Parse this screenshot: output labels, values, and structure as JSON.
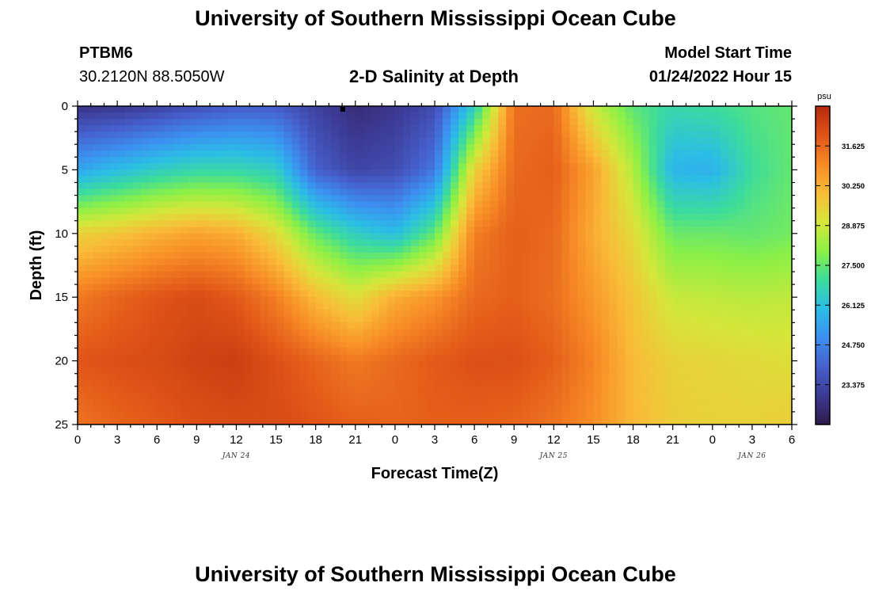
{
  "header": {
    "title": "University of Southern Mississippi Ocean Cube",
    "station_id": "PTBM6",
    "coordinates": "30.2120N  88.5050W",
    "plot_title": "2-D Salinity at Depth",
    "model_start_label": "Model Start Time",
    "model_start_value": "01/24/2022 Hour 15"
  },
  "footer": {
    "title": "University of Southern Mississippi Ocean Cube"
  },
  "chart_data": {
    "type": "heatmap",
    "title": "2-D Salinity at Depth",
    "xlabel": "Forecast Time(Z)",
    "ylabel": "Depth (ft)",
    "x_tick_labels": [
      "0",
      "3",
      "6",
      "9",
      "12",
      "15",
      "18",
      "21",
      "0",
      "3",
      "6",
      "9",
      "12",
      "15",
      "18",
      "21",
      "0",
      "3",
      "6"
    ],
    "date_labels": [
      {
        "text": "JAN 24",
        "tick_index": 4
      },
      {
        "text": "JAN 25",
        "tick_index": 12
      },
      {
        "text": "JAN 26",
        "tick_index": 17
      }
    ],
    "y_ticks": [
      0,
      5,
      10,
      15,
      20,
      25
    ],
    "ylim": [
      0,
      25
    ],
    "x_hours_range": [
      0,
      54
    ],
    "colorbar": {
      "unit": "psu",
      "range": [
        22.0,
        33.0
      ],
      "tick_labels": [
        "31.625",
        "30.250",
        "28.875",
        "27.500",
        "26.125",
        "24.750",
        "23.375"
      ],
      "colors": [
        "#2e1a4a",
        "#3c3a94",
        "#4660cc",
        "#3c8ff0",
        "#2bbde6",
        "#3cdc9c",
        "#8cf046",
        "#d6e63a",
        "#f9bc38",
        "#f78a25",
        "#e05418",
        "#b52a0c"
      ]
    },
    "grid": {
      "depths_ft": [
        0,
        5,
        10,
        15,
        20,
        25
      ],
      "hours": [
        0,
        3,
        6,
        9,
        12,
        15,
        18,
        21,
        24,
        27,
        30,
        33,
        36,
        39,
        42,
        45,
        48,
        51,
        54
      ],
      "salinity_psu": [
        [
          22.8,
          22.9,
          23.2,
          23.6,
          23.9,
          23.9,
          23.2,
          22.6,
          22.9,
          23.5,
          26.5,
          31.5,
          31.6,
          28.8,
          27.4,
          26.8,
          27.0,
          27.3,
          27.5
        ],
        [
          25.5,
          26.0,
          26.5,
          26.8,
          26.8,
          26.5,
          24.0,
          23.3,
          23.5,
          24.5,
          29.5,
          31.6,
          31.8,
          30.5,
          28.5,
          25.8,
          25.7,
          27.0,
          27.5
        ],
        [
          29.5,
          29.8,
          30.2,
          30.5,
          30.3,
          29.3,
          27.5,
          26.5,
          26.0,
          27.5,
          31.2,
          31.8,
          31.6,
          30.3,
          29.3,
          27.6,
          27.6,
          27.5,
          27.7
        ],
        [
          31.3,
          31.7,
          32.0,
          32.2,
          31.9,
          31.2,
          30.0,
          29.2,
          30.3,
          30.8,
          31.6,
          31.8,
          31.5,
          30.7,
          29.8,
          28.8,
          28.7,
          28.6,
          28.7
        ],
        [
          32.0,
          32.1,
          32.2,
          32.4,
          32.5,
          32.1,
          31.7,
          31.3,
          31.6,
          31.9,
          32.1,
          32.1,
          31.8,
          31.1,
          30.0,
          29.5,
          29.4,
          29.3,
          29.2
        ],
        [
          31.4,
          31.7,
          31.9,
          32.1,
          32.2,
          32.2,
          32.0,
          31.8,
          31.7,
          31.8,
          31.8,
          31.7,
          31.4,
          30.9,
          30.1,
          29.6,
          29.5,
          29.5,
          29.6
        ]
      ]
    }
  }
}
